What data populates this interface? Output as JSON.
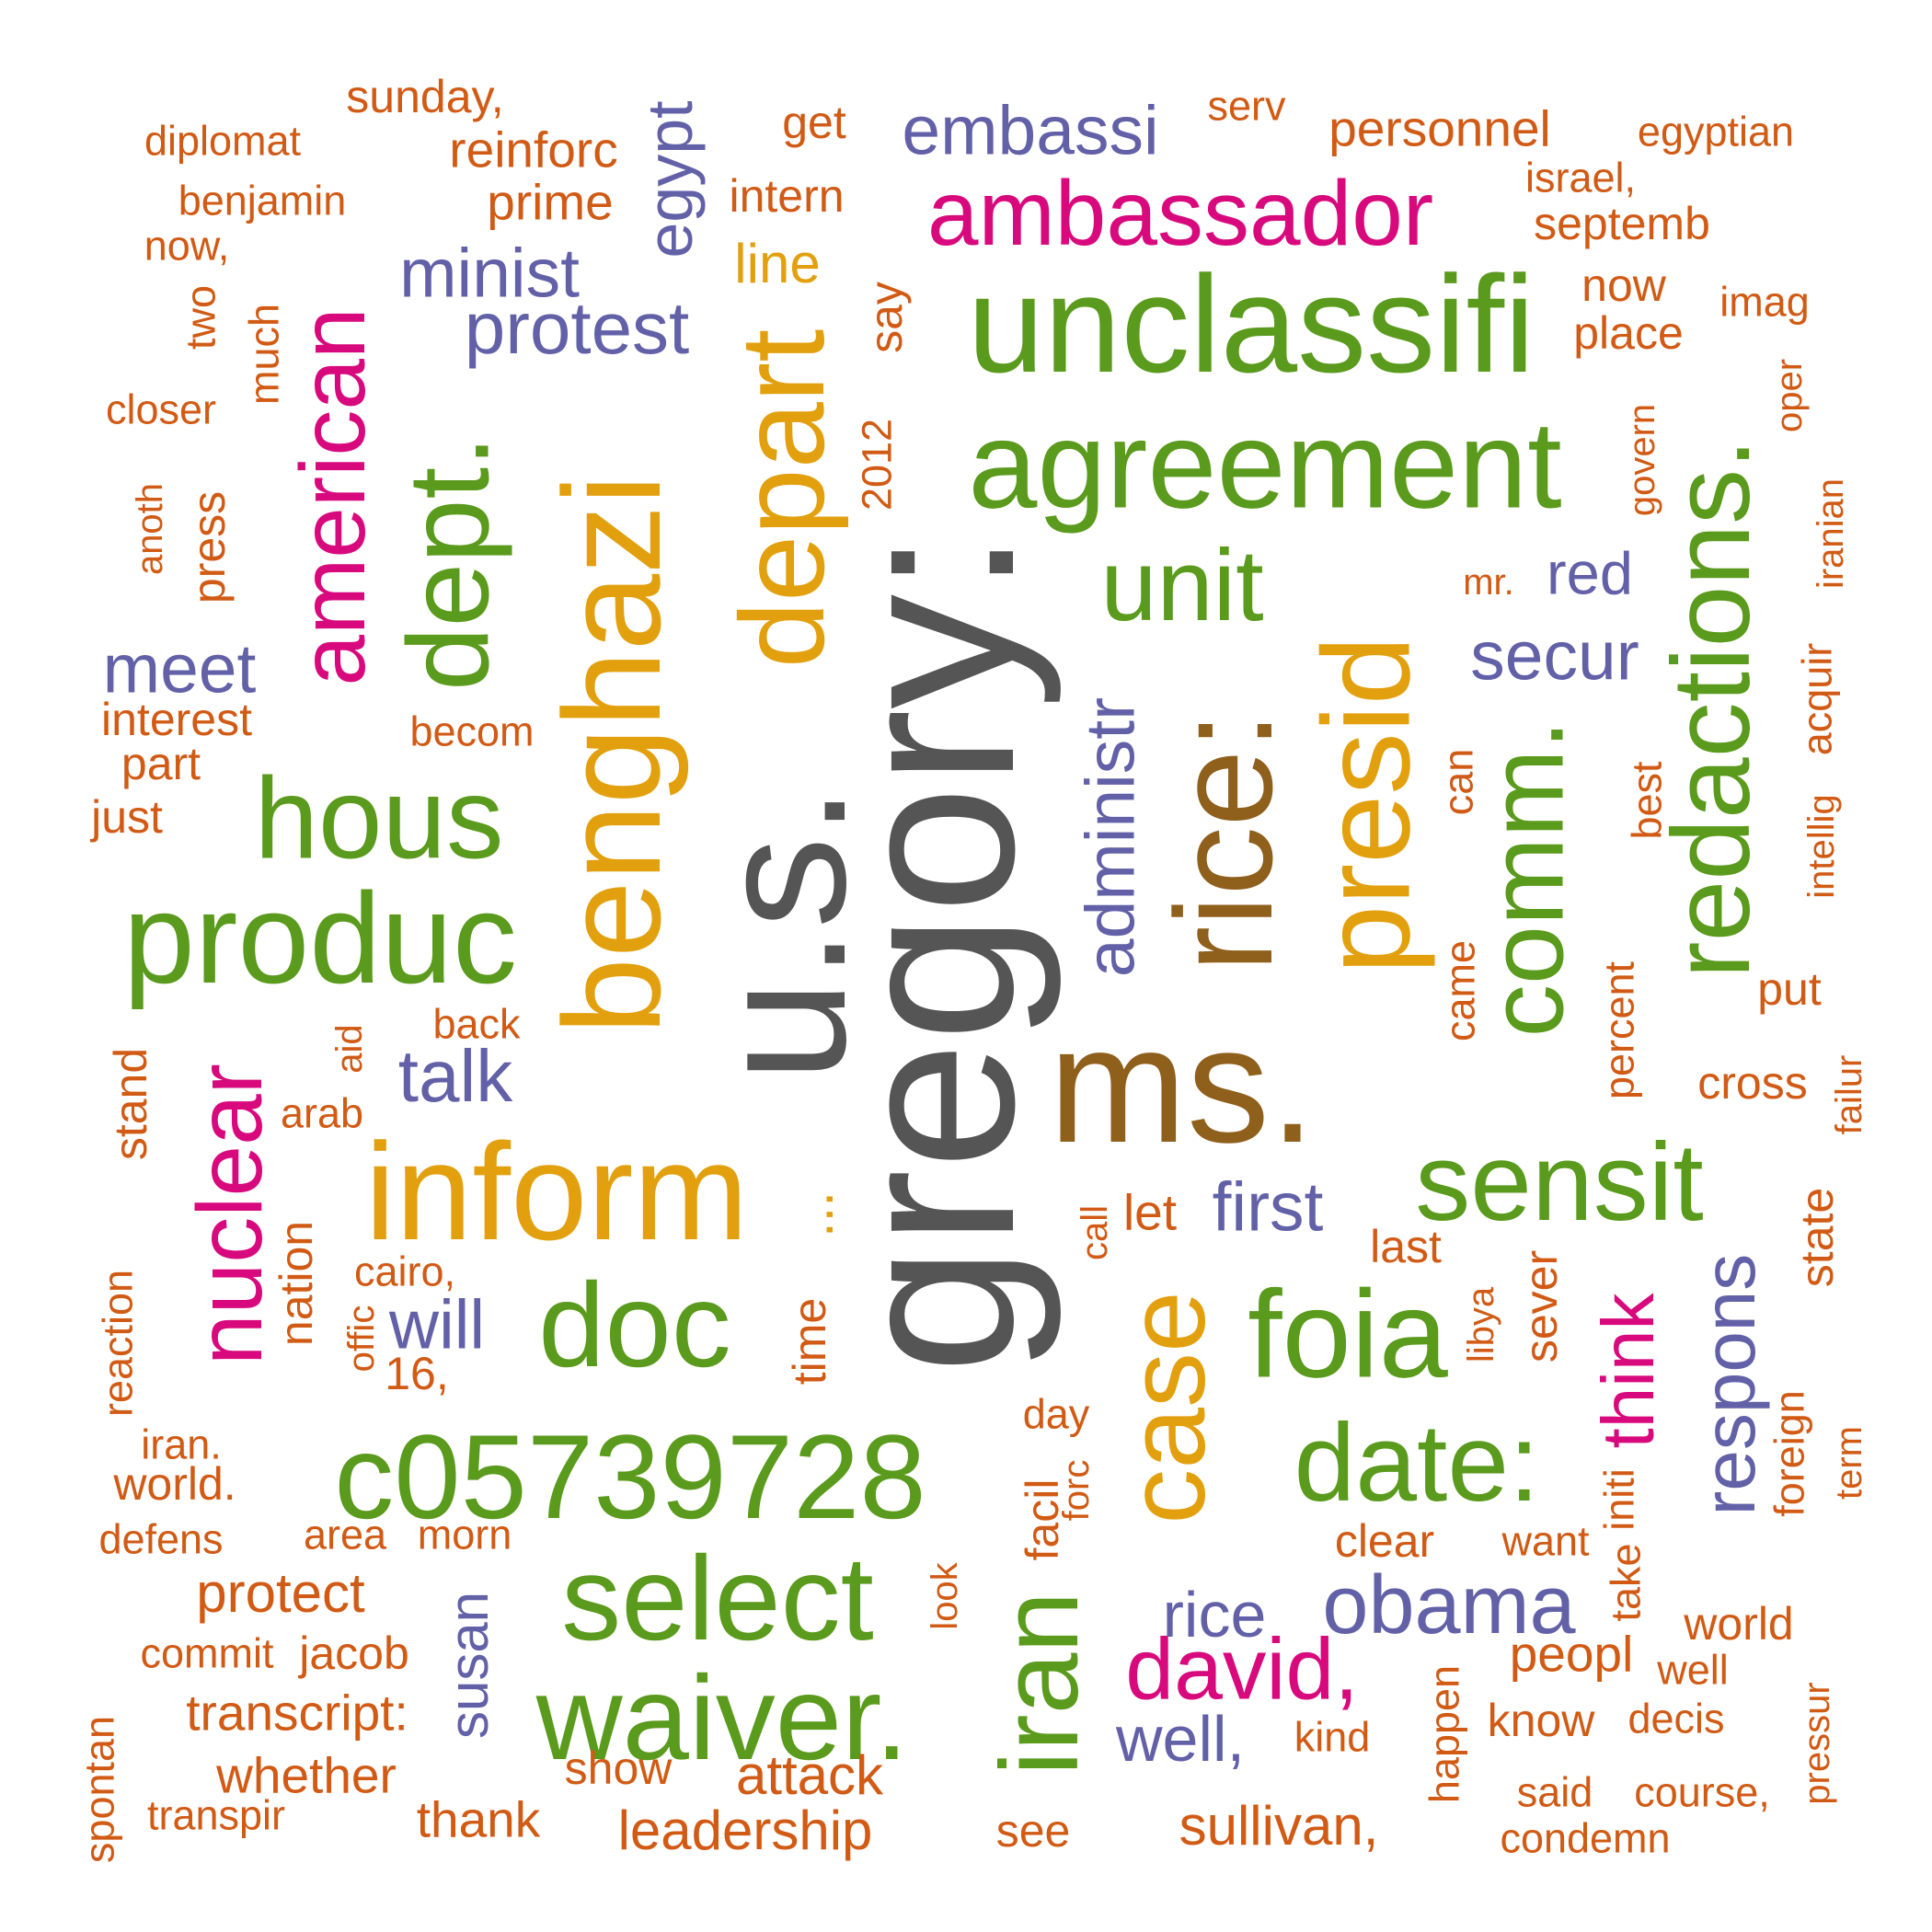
{
  "palette": {
    "gray": "#555555",
    "green": "#5a9a1c",
    "orange": "#e2a00e",
    "magenta": "#d8097d",
    "purple": "#6261a8",
    "brown": "#8f5f1c",
    "rust": "#d15a14"
  },
  "words": [
    {
      "text": "gregory:",
      "color": "gray"
    },
    {
      "text": "u.s.",
      "color": "gray"
    },
    {
      "text": "ms.",
      "color": "brown"
    },
    {
      "text": "rice:",
      "color": "brown"
    },
    {
      "text": "unclassifi",
      "color": "green"
    },
    {
      "text": "agreement",
      "color": "green"
    },
    {
      "text": "produc",
      "color": "green"
    },
    {
      "text": "hous",
      "color": "green"
    },
    {
      "text": "dept.",
      "color": "green"
    },
    {
      "text": "doc",
      "color": "green"
    },
    {
      "text": "c05739728",
      "color": "green"
    },
    {
      "text": "select",
      "color": "green"
    },
    {
      "text": "waiver.",
      "color": "green"
    },
    {
      "text": "foia",
      "color": "green"
    },
    {
      "text": "sensit",
      "color": "green"
    },
    {
      "text": "date:",
      "color": "green"
    },
    {
      "text": "comm.",
      "color": "green"
    },
    {
      "text": "redactions.",
      "color": "green"
    },
    {
      "text": "unit",
      "color": "green"
    },
    {
      "text": "benghazi",
      "color": "orange"
    },
    {
      "text": "depart",
      "color": "orange"
    },
    {
      "text": "inform",
      "color": "orange"
    },
    {
      "text": "presid",
      "color": "orange"
    },
    {
      "text": "case",
      "color": "orange"
    },
    {
      "text": "line",
      "color": "orange"
    },
    {
      "text": "...",
      "color": "orange"
    },
    {
      "text": "iran",
      "color": "green"
    },
    {
      "text": "ambassador",
      "color": "magenta"
    },
    {
      "text": "american",
      "color": "magenta"
    },
    {
      "text": "nuclear",
      "color": "magenta"
    },
    {
      "text": "david,",
      "color": "magenta"
    },
    {
      "text": "think",
      "color": "magenta"
    },
    {
      "text": "embassi",
      "color": "purple"
    },
    {
      "text": "minist",
      "color": "purple"
    },
    {
      "text": "protest",
      "color": "purple"
    },
    {
      "text": "egypt",
      "color": "purple"
    },
    {
      "text": "meet",
      "color": "purple"
    },
    {
      "text": "talk",
      "color": "purple"
    },
    {
      "text": "will",
      "color": "purple"
    },
    {
      "text": "administr",
      "color": "purple"
    },
    {
      "text": "first",
      "color": "purple"
    },
    {
      "text": "secur",
      "color": "purple"
    },
    {
      "text": "red",
      "color": "purple"
    },
    {
      "text": "obama",
      "color": "purple"
    },
    {
      "text": "rice",
      "color": "purple"
    },
    {
      "text": "well,",
      "color": "purple"
    },
    {
      "text": "respons",
      "color": "purple"
    },
    {
      "text": "susan",
      "color": "purple"
    },
    {
      "text": "sunday,",
      "color": "rust"
    },
    {
      "text": "diplomat",
      "color": "rust"
    },
    {
      "text": "reinforc",
      "color": "rust"
    },
    {
      "text": "get",
      "color": "rust"
    },
    {
      "text": "serv",
      "color": "rust"
    },
    {
      "text": "personnel",
      "color": "rust"
    },
    {
      "text": "egyptian",
      "color": "rust"
    },
    {
      "text": "benjamin",
      "color": "rust"
    },
    {
      "text": "prime",
      "color": "rust"
    },
    {
      "text": "intern",
      "color": "rust"
    },
    {
      "text": "israel,",
      "color": "rust"
    },
    {
      "text": "septemb",
      "color": "rust"
    },
    {
      "text": "now,",
      "color": "rust"
    },
    {
      "text": "now",
      "color": "rust"
    },
    {
      "text": "imag",
      "color": "rust"
    },
    {
      "text": "place",
      "color": "rust"
    },
    {
      "text": "two",
      "color": "rust"
    },
    {
      "text": "much",
      "color": "rust"
    },
    {
      "text": "say",
      "color": "rust"
    },
    {
      "text": "closer",
      "color": "rust"
    },
    {
      "text": "oper",
      "color": "rust"
    },
    {
      "text": "govern",
      "color": "rust"
    },
    {
      "text": "2012",
      "color": "rust"
    },
    {
      "text": "anoth",
      "color": "rust"
    },
    {
      "text": "press",
      "color": "rust"
    },
    {
      "text": "iranian",
      "color": "rust"
    },
    {
      "text": "mr.",
      "color": "rust"
    },
    {
      "text": "interest",
      "color": "rust"
    },
    {
      "text": "becom",
      "color": "rust"
    },
    {
      "text": "acquir",
      "color": "rust"
    },
    {
      "text": "part",
      "color": "rust"
    },
    {
      "text": "just",
      "color": "rust"
    },
    {
      "text": "can",
      "color": "rust"
    },
    {
      "text": "best",
      "color": "rust"
    },
    {
      "text": "intellig",
      "color": "rust"
    },
    {
      "text": "put",
      "color": "rust"
    },
    {
      "text": "back",
      "color": "rust"
    },
    {
      "text": "aid",
      "color": "rust"
    },
    {
      "text": "came",
      "color": "rust"
    },
    {
      "text": "percent",
      "color": "rust"
    },
    {
      "text": "stand",
      "color": "rust"
    },
    {
      "text": "arab",
      "color": "rust"
    },
    {
      "text": "cross",
      "color": "rust"
    },
    {
      "text": "failur",
      "color": "rust"
    },
    {
      "text": "call",
      "color": "rust"
    },
    {
      "text": "let",
      "color": "rust"
    },
    {
      "text": "last",
      "color": "rust"
    },
    {
      "text": "state",
      "color": "rust"
    },
    {
      "text": "nation",
      "color": "rust"
    },
    {
      "text": "cairo,",
      "color": "rust"
    },
    {
      "text": "reaction",
      "color": "rust"
    },
    {
      "text": "offic",
      "color": "rust"
    },
    {
      "text": "time",
      "color": "rust"
    },
    {
      "text": "sever",
      "color": "rust"
    },
    {
      "text": "libya",
      "color": "rust"
    },
    {
      "text": "16,",
      "color": "rust"
    },
    {
      "text": "day",
      "color": "rust"
    },
    {
      "text": "iran.",
      "color": "rust"
    },
    {
      "text": "forc",
      "color": "rust"
    },
    {
      "text": "foreign",
      "color": "rust"
    },
    {
      "text": "term",
      "color": "rust"
    },
    {
      "text": "world.",
      "color": "rust"
    },
    {
      "text": "facil",
      "color": "rust"
    },
    {
      "text": "initi",
      "color": "rust"
    },
    {
      "text": "defens",
      "color": "rust"
    },
    {
      "text": "area",
      "color": "rust"
    },
    {
      "text": "morn",
      "color": "rust"
    },
    {
      "text": "clear",
      "color": "rust"
    },
    {
      "text": "want",
      "color": "rust"
    },
    {
      "text": "look",
      "color": "rust"
    },
    {
      "text": "take",
      "color": "rust"
    },
    {
      "text": "protect",
      "color": "rust"
    },
    {
      "text": "world",
      "color": "rust"
    },
    {
      "text": "commit",
      "color": "rust"
    },
    {
      "text": "jacob",
      "color": "rust"
    },
    {
      "text": "peopl",
      "color": "rust"
    },
    {
      "text": "well",
      "color": "rust"
    },
    {
      "text": "transcript:",
      "color": "rust"
    },
    {
      "text": "happen",
      "color": "rust"
    },
    {
      "text": "know",
      "color": "rust"
    },
    {
      "text": "decis",
      "color": "rust"
    },
    {
      "text": "pressur",
      "color": "rust"
    },
    {
      "text": "spontan",
      "color": "rust"
    },
    {
      "text": "kind",
      "color": "rust"
    },
    {
      "text": "whether",
      "color": "rust"
    },
    {
      "text": "show",
      "color": "rust"
    },
    {
      "text": "attack",
      "color": "rust"
    },
    {
      "text": "said",
      "color": "rust"
    },
    {
      "text": "course,",
      "color": "rust"
    },
    {
      "text": "transpir",
      "color": "rust"
    },
    {
      "text": "thank",
      "color": "rust"
    },
    {
      "text": "leadership",
      "color": "rust"
    },
    {
      "text": "see",
      "color": "rust"
    },
    {
      "text": "sullivan,",
      "color": "rust"
    },
    {
      "text": "condemn",
      "color": "rust"
    }
  ]
}
